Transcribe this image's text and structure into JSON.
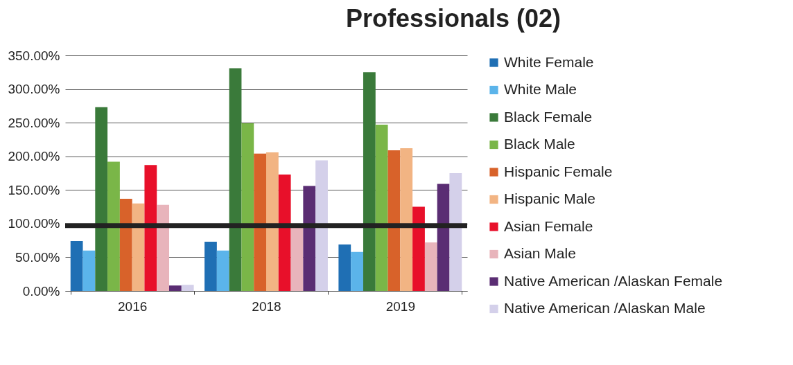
{
  "chart_data": {
    "type": "bar",
    "title": "Professionals (02)",
    "categories": [
      "2016",
      "2018",
      "2019"
    ],
    "series": [
      {
        "name": "White Female",
        "color": "#1f6fb4",
        "values": [
          74,
          73,
          69
        ]
      },
      {
        "name": "White Male",
        "color": "#5bb4ea",
        "values": [
          60,
          60,
          58
        ]
      },
      {
        "name": "Black Female",
        "color": "#3a7a3a",
        "values": [
          273,
          331,
          325
        ]
      },
      {
        "name": "Black Male",
        "color": "#7ab648",
        "values": [
          192,
          249,
          247
        ]
      },
      {
        "name": "Hispanic Female",
        "color": "#d8622a",
        "values": [
          137,
          204,
          209
        ]
      },
      {
        "name": "Hispanic Male",
        "color": "#f2b483",
        "values": [
          130,
          206,
          212
        ]
      },
      {
        "name": "Asian Female",
        "color": "#e8102a",
        "values": [
          187,
          173,
          125
        ]
      },
      {
        "name": "Asian Male",
        "color": "#e8b4bb",
        "values": [
          128,
          95,
          72
        ]
      },
      {
        "name": "Native American /Alaskan Female",
        "color": "#5a2d73",
        "values": [
          8,
          156,
          159
        ]
      },
      {
        "name": "Native American /Alaskan Male",
        "color": "#d4d0ea",
        "values": [
          9,
          194,
          175
        ]
      }
    ],
    "ylim": [
      0,
      350
    ],
    "yticks": [
      {
        "value": 0,
        "label": "0.00%"
      },
      {
        "value": 50,
        "label": "50.00%"
      },
      {
        "value": 100,
        "label": "100.00%"
      },
      {
        "value": 150,
        "label": "150.00%"
      },
      {
        "value": 200,
        "label": "200.00%"
      },
      {
        "value": 250,
        "label": "250.00%"
      },
      {
        "value": 300,
        "label": "300.00%"
      },
      {
        "value": 350,
        "label": "350.00%"
      }
    ],
    "ref_lines": [
      {
        "axis": "y",
        "value": 97,
        "color": "#222222"
      }
    ],
    "grid": "y",
    "legend": "right"
  }
}
